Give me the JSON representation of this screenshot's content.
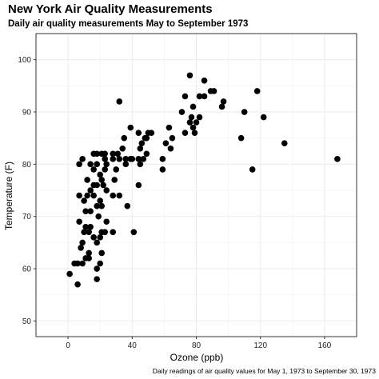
{
  "chart_data": {
    "type": "scatter",
    "title": "New York Air Quality Measurements",
    "subtitle": "Daily air quality measurements May to September 1973",
    "xlabel": "Ozone (ppb)",
    "ylabel": "Temperature (F)",
    "caption": "Daily readings of air quality values for May 1, 1973 to September 30, 1973",
    "xlim": [
      -20,
      180
    ],
    "ylim": [
      47,
      105
    ],
    "xticks": [
      0,
      40,
      80,
      120,
      160
    ],
    "yticks": [
      50,
      60,
      70,
      80,
      90,
      100
    ],
    "grid": true,
    "point_color": "#000000",
    "points": [
      [
        1,
        59
      ],
      [
        4,
        61
      ],
      [
        6,
        61
      ],
      [
        6,
        57
      ],
      [
        7,
        74
      ],
      [
        7,
        69
      ],
      [
        7,
        80
      ],
      [
        8,
        64
      ],
      [
        9,
        81
      ],
      [
        9,
        61
      ],
      [
        9,
        65
      ],
      [
        10,
        67
      ],
      [
        10,
        73
      ],
      [
        11,
        68
      ],
      [
        11,
        71
      ],
      [
        11,
        62
      ],
      [
        12,
        74
      ],
      [
        12,
        77
      ],
      [
        13,
        67
      ],
      [
        13,
        63
      ],
      [
        13,
        62
      ],
      [
        14,
        75
      ],
      [
        14,
        80
      ],
      [
        14,
        71
      ],
      [
        14,
        68
      ],
      [
        16,
        74
      ],
      [
        16,
        66
      ],
      [
        16,
        79
      ],
      [
        16,
        82
      ],
      [
        16,
        76
      ],
      [
        18,
        72
      ],
      [
        18,
        65
      ],
      [
        18,
        60
      ],
      [
        18,
        58
      ],
      [
        18,
        82
      ],
      [
        18,
        80
      ],
      [
        18,
        76
      ],
      [
        19,
        70
      ],
      [
        20,
        78
      ],
      [
        20,
        61
      ],
      [
        20,
        66
      ],
      [
        20,
        73
      ],
      [
        21,
        72
      ],
      [
        21,
        67
      ],
      [
        21,
        77
      ],
      [
        21,
        82
      ],
      [
        21,
        63
      ],
      [
        22,
        76
      ],
      [
        23,
        82
      ],
      [
        23,
        79
      ],
      [
        23,
        67
      ],
      [
        23,
        81
      ],
      [
        24,
        75
      ],
      [
        24,
        69
      ],
      [
        24,
        80
      ],
      [
        28,
        81
      ],
      [
        28,
        67
      ],
      [
        28,
        74
      ],
      [
        28,
        82
      ],
      [
        29,
        77
      ],
      [
        30,
        79
      ],
      [
        31,
        82
      ],
      [
        32,
        81
      ],
      [
        32,
        74
      ],
      [
        32,
        92
      ],
      [
        34,
        83
      ],
      [
        35,
        85
      ],
      [
        36,
        80
      ],
      [
        36,
        81
      ],
      [
        37,
        72
      ],
      [
        39,
        81
      ],
      [
        39,
        87
      ],
      [
        40,
        81
      ],
      [
        41,
        67
      ],
      [
        44,
        86
      ],
      [
        44,
        81
      ],
      [
        44,
        76
      ],
      [
        45,
        80
      ],
      [
        45,
        83
      ],
      [
        46,
        84
      ],
      [
        47,
        81
      ],
      [
        48,
        85
      ],
      [
        49,
        85
      ],
      [
        49,
        82
      ],
      [
        50,
        86
      ],
      [
        52,
        86
      ],
      [
        59,
        81
      ],
      [
        59,
        79
      ],
      [
        61,
        84
      ],
      [
        63,
        87
      ],
      [
        64,
        83
      ],
      [
        65,
        85
      ],
      [
        71,
        90
      ],
      [
        73,
        86
      ],
      [
        73,
        93
      ],
      [
        76,
        88
      ],
      [
        76,
        97
      ],
      [
        77,
        89
      ],
      [
        78,
        87
      ],
      [
        78,
        91
      ],
      [
        79,
        86
      ],
      [
        80,
        88
      ],
      [
        82,
        93
      ],
      [
        82,
        89
      ],
      [
        85,
        93
      ],
      [
        85,
        96
      ],
      [
        89,
        94
      ],
      [
        91,
        94
      ],
      [
        96,
        91
      ],
      [
        97,
        92
      ],
      [
        108,
        85
      ],
      [
        110,
        90
      ],
      [
        115,
        79
      ],
      [
        118,
        94
      ],
      [
        122,
        89
      ],
      [
        135,
        84
      ],
      [
        168,
        81
      ]
    ]
  }
}
